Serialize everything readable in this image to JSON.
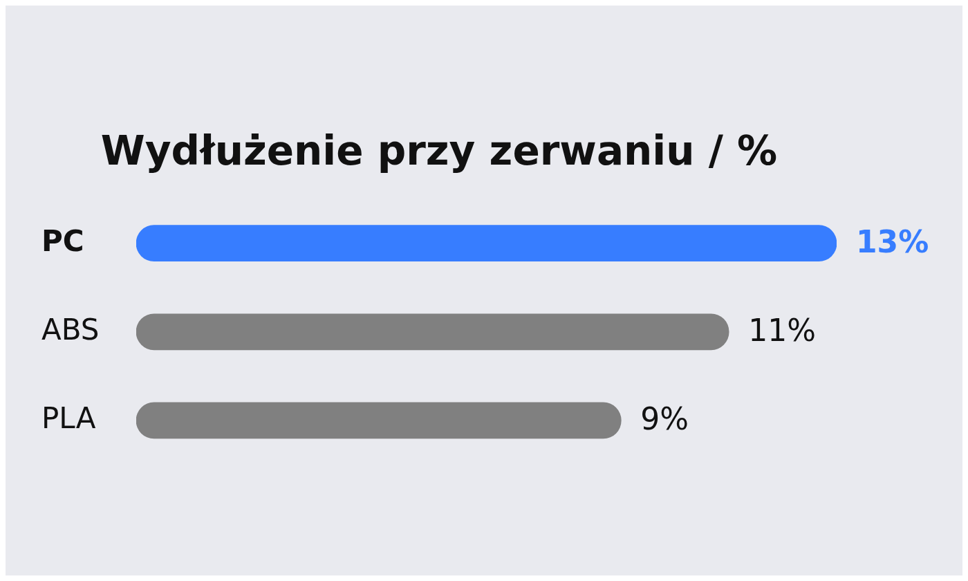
{
  "chart_data": {
    "type": "bar",
    "orientation": "horizontal",
    "title": "Wydłużenie przy zerwaniu / %",
    "categories": [
      "PC",
      "ABS",
      "PLA"
    ],
    "values": [
      13,
      11,
      9
    ],
    "value_labels": [
      "13%",
      "11%",
      "9%"
    ],
    "colors": [
      "#377dff",
      "#808080",
      "#808080"
    ],
    "legend": false
  }
}
